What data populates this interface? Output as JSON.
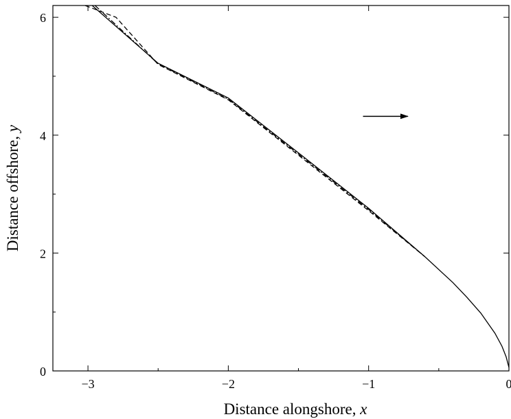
{
  "chart_data": {
    "type": "line",
    "title": "",
    "xlabel": "Distance alongshore, ",
    "xlabel_var": "x",
    "ylabel": "Distance offshore, ",
    "ylabel_var": "y",
    "xlim": [
      -3.25,
      0.0
    ],
    "ylim": [
      0.0,
      6.2
    ],
    "xticks": [
      -3,
      -2,
      -1,
      0
    ],
    "xtick_labels": [
      "−3",
      "−2",
      "−1",
      "0"
    ],
    "yticks": [
      0,
      2,
      4,
      6
    ],
    "ytick_labels": [
      "0",
      "2",
      "4",
      "6"
    ],
    "grid": false,
    "series": [
      {
        "style": "solid",
        "x": [
          -2.97,
          -2.5,
          -2.0,
          -1.5,
          -1.0,
          -0.8,
          -0.6,
          -0.4,
          -0.3,
          -0.2,
          -0.1,
          -0.05,
          -0.02,
          0.0
        ],
        "y": [
          6.2,
          5.22,
          4.63,
          3.7,
          2.76,
          2.35,
          1.94,
          1.5,
          1.25,
          0.98,
          0.64,
          0.42,
          0.24,
          0.06
        ]
      },
      {
        "style": "dashed",
        "x": [
          -3.02,
          -2.8,
          -2.5,
          -2.0,
          -1.5,
          -1.0,
          -0.8,
          -0.6
        ],
        "y": [
          6.2,
          6.0,
          5.2,
          4.6,
          3.66,
          2.72,
          2.33,
          1.94
        ]
      },
      {
        "style": "dashdot",
        "x": [
          -2.95,
          -2.5,
          -2.0,
          -1.5,
          -1.0,
          -0.8,
          -0.6
        ],
        "y": [
          6.2,
          5.21,
          4.61,
          3.68,
          2.74,
          2.34,
          1.94
        ]
      }
    ],
    "annotations": [
      {
        "type": "arrow",
        "direction": "right",
        "x_start": -1.04,
        "x_end": -0.72,
        "y": 4.32
      }
    ]
  }
}
